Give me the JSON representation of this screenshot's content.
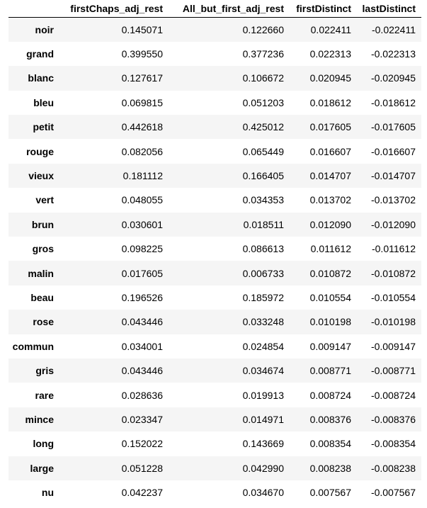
{
  "table": {
    "columns": [
      "",
      "firstChaps_adj_rest",
      "All_but_first_adj_rest",
      "firstDistinct",
      "lastDistinct"
    ],
    "rows": [
      {
        "index": "noir",
        "values": [
          "0.145071",
          "0.122660",
          "0.022411",
          "-0.022411"
        ]
      },
      {
        "index": "grand",
        "values": [
          "0.399550",
          "0.377236",
          "0.022313",
          "-0.022313"
        ]
      },
      {
        "index": "blanc",
        "values": [
          "0.127617",
          "0.106672",
          "0.020945",
          "-0.020945"
        ]
      },
      {
        "index": "bleu",
        "values": [
          "0.069815",
          "0.051203",
          "0.018612",
          "-0.018612"
        ]
      },
      {
        "index": "petit",
        "values": [
          "0.442618",
          "0.425012",
          "0.017605",
          "-0.017605"
        ]
      },
      {
        "index": "rouge",
        "values": [
          "0.082056",
          "0.065449",
          "0.016607",
          "-0.016607"
        ]
      },
      {
        "index": "vieux",
        "values": [
          "0.181112",
          "0.166405",
          "0.014707",
          "-0.014707"
        ]
      },
      {
        "index": "vert",
        "values": [
          "0.048055",
          "0.034353",
          "0.013702",
          "-0.013702"
        ]
      },
      {
        "index": "brun",
        "values": [
          "0.030601",
          "0.018511",
          "0.012090",
          "-0.012090"
        ]
      },
      {
        "index": "gros",
        "values": [
          "0.098225",
          "0.086613",
          "0.011612",
          "-0.011612"
        ]
      },
      {
        "index": "malin",
        "values": [
          "0.017605",
          "0.006733",
          "0.010872",
          "-0.010872"
        ]
      },
      {
        "index": "beau",
        "values": [
          "0.196526",
          "0.185972",
          "0.010554",
          "-0.010554"
        ]
      },
      {
        "index": "rose",
        "values": [
          "0.043446",
          "0.033248",
          "0.010198",
          "-0.010198"
        ]
      },
      {
        "index": "commun",
        "values": [
          "0.034001",
          "0.024854",
          "0.009147",
          "-0.009147"
        ]
      },
      {
        "index": "gris",
        "values": [
          "0.043446",
          "0.034674",
          "0.008771",
          "-0.008771"
        ]
      },
      {
        "index": "rare",
        "values": [
          "0.028636",
          "0.019913",
          "0.008724",
          "-0.008724"
        ]
      },
      {
        "index": "mince",
        "values": [
          "0.023347",
          "0.014971",
          "0.008376",
          "-0.008376"
        ]
      },
      {
        "index": "long",
        "values": [
          "0.152022",
          "0.143669",
          "0.008354",
          "-0.008354"
        ]
      },
      {
        "index": "large",
        "values": [
          "0.051228",
          "0.042990",
          "0.008238",
          "-0.008238"
        ]
      },
      {
        "index": "nu",
        "values": [
          "0.042237",
          "0.034670",
          "0.007567",
          "-0.007567"
        ]
      }
    ]
  },
  "colors": {
    "stripe": "#f5f5f5",
    "header_rule": "#000000"
  }
}
